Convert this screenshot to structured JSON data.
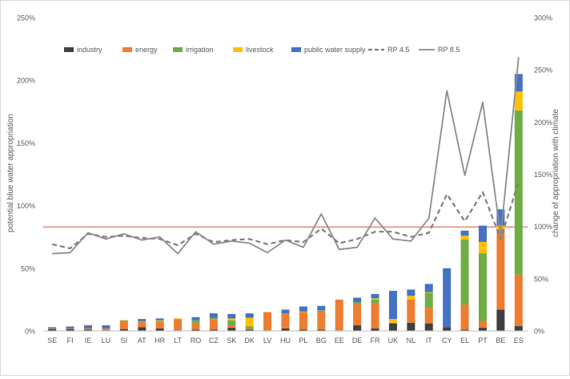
{
  "chart_data": {
    "type": "bar",
    "stacked": true,
    "grid": false,
    "legend_position": "top",
    "categories": [
      "SE",
      "FI",
      "IE",
      "LU",
      "SI",
      "AT",
      "HR",
      "LT",
      "RO",
      "CZ",
      "SK",
      "DK",
      "LV",
      "HU",
      "PL",
      "BG",
      "EE",
      "DE",
      "FR",
      "UK",
      "NL",
      "IT",
      "CY",
      "EL",
      "PT",
      "BE",
      "ES"
    ],
    "ylabel": "potential blue water appropriation",
    "y2label": "change of appropriation with climate",
    "ylim": [
      0,
      250
    ],
    "y2lim": [
      0,
      300
    ],
    "yticks": [
      "0%",
      "50%",
      "100%",
      "150%",
      "200%",
      "250%"
    ],
    "y2ticks": [
      "0%",
      "50%",
      "100%",
      "150%",
      "200%",
      "250%",
      "300%"
    ],
    "reference_line": {
      "axis": "y",
      "value": 83,
      "color": "#e74c3c"
    },
    "series": [
      {
        "name": "industry",
        "kind": "bar",
        "color": "#404040",
        "values": [
          1.5,
          1.5,
          1,
          0.5,
          1.5,
          3,
          2,
          0.5,
          1,
          1,
          2.5,
          1,
          0.5,
          2,
          1,
          1,
          0.5,
          4.5,
          2,
          6,
          6.5,
          6,
          3,
          1,
          2.5,
          17,
          4
        ]
      },
      {
        "name": "energy",
        "kind": "bar",
        "color": "#ed7d31",
        "values": [
          0.5,
          0.5,
          1,
          1.5,
          6.5,
          4.5,
          5.5,
          9,
          5.5,
          8.5,
          2,
          0.5,
          14.5,
          12,
          14,
          15,
          24.5,
          17,
          20,
          0.5,
          18.5,
          12.5,
          0,
          20,
          5.5,
          64,
          41
        ]
      },
      {
        "name": "irrigation",
        "kind": "bar",
        "color": "#70ad47",
        "values": [
          0,
          0,
          0,
          0,
          0.5,
          0.5,
          0.5,
          0,
          2,
          1,
          4,
          2,
          0,
          0,
          0,
          0.5,
          0,
          1.5,
          3,
          0,
          0,
          12,
          0,
          52,
          54,
          0,
          131
        ]
      },
      {
        "name": "livestock",
        "kind": "bar",
        "color": "#ffc000",
        "values": [
          0,
          0,
          0,
          0,
          0,
          0,
          0.5,
          0.5,
          0,
          0,
          1.5,
          7,
          0,
          0,
          0.5,
          0,
          0,
          0,
          1,
          3,
          3,
          0.5,
          0,
          3,
          9,
          3,
          15
        ]
      },
      {
        "name": "public water supply",
        "kind": "bar",
        "color": "#4472c4",
        "values": [
          1,
          1.5,
          2.5,
          2.5,
          0,
          1.5,
          1.5,
          0,
          2.5,
          3.5,
          3.5,
          3.5,
          0,
          3,
          4,
          3.5,
          0,
          3.5,
          3.5,
          22.5,
          5,
          6.5,
          47,
          4,
          13,
          13,
          14
        ]
      },
      {
        "name": "RP 4.5",
        "kind": "line",
        "axis": "y2",
        "color": "#7f7f7f",
        "dash": true,
        "values": [
          83,
          79,
          93,
          90,
          91,
          89,
          88,
          82,
          93,
          85,
          87,
          88,
          83,
          87,
          85,
          98,
          84,
          88,
          95,
          95,
          90,
          94,
          131,
          105,
          133,
          88,
          143
        ]
      },
      {
        "name": "RP 8.5",
        "kind": "line",
        "axis": "y2",
        "color": "#8c8c8c",
        "dash": false,
        "values": [
          74,
          75,
          94,
          88,
          93,
          87,
          90,
          74,
          95,
          83,
          86,
          84,
          75,
          87,
          80,
          112,
          78,
          80,
          108,
          88,
          86,
          108,
          230,
          149,
          219,
          91,
          262
        ]
      }
    ]
  }
}
